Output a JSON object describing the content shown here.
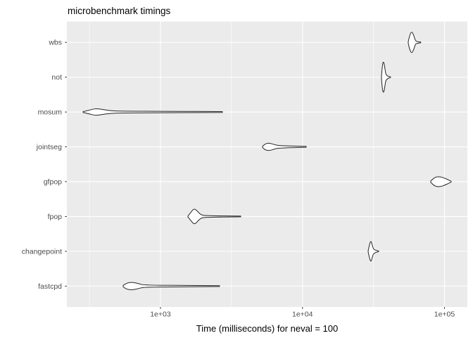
{
  "title": "microbenchmark timings",
  "colors": {
    "panel_bg": "#EBEBEB",
    "grid_major": "#FFFFFF",
    "grid_minor": "#FFFFFF",
    "violin_stroke": "#242424",
    "violin_fill": "#FFFFFF",
    "tick_mark": "#333333",
    "tick_text": "#4D4D4D",
    "title_text": "#000000"
  },
  "chart_data": {
    "type": "violin",
    "orientation": "horizontal",
    "title": "microbenchmark timings",
    "xlabel": "Time (milliseconds) for neval = 100",
    "ylabel": "",
    "x_scale": "log10",
    "xlim_log10": [
      2.341,
      5.161
    ],
    "grid": true,
    "legend": "none",
    "x_ticks": [
      {
        "value": 1000,
        "label": "1e+03"
      },
      {
        "value": 10000,
        "label": "1e+04"
      },
      {
        "value": 100000,
        "label": "1e+05"
      }
    ],
    "x_minor_tick_values": [
      316.2,
      3162.3,
      31622.8
    ],
    "categories_top_to_bottom": [
      "wbs",
      "not",
      "mosum",
      "jointseg",
      "gfpop",
      "fpop",
      "changepoint",
      "fastcpd"
    ],
    "series": [
      {
        "name": "wbs",
        "approx_ms": {
          "min": 55500,
          "peak": 58700,
          "max": 68000
        },
        "profile": [
          [
            4.744,
            0.5
          ],
          [
            4.754,
            10
          ],
          [
            4.769,
            16
          ],
          [
            4.784,
            10
          ],
          [
            4.794,
            3
          ],
          [
            4.804,
            1.2
          ],
          [
            4.833,
            0.5
          ]
        ]
      },
      {
        "name": "not",
        "approx_ms": {
          "min": 36000,
          "peak": 37200,
          "max": 41700
        },
        "profile": [
          [
            4.556,
            0.5
          ],
          [
            4.563,
            18
          ],
          [
            4.571,
            23
          ],
          [
            4.581,
            12
          ],
          [
            4.588,
            2
          ],
          [
            4.62,
            0.5
          ]
        ]
      },
      {
        "name": "mosum",
        "approx_ms": {
          "min": 285,
          "peak": 350,
          "max": 2730
        },
        "profile": [
          [
            2.455,
            0.5
          ],
          [
            2.495,
            2.5
          ],
          [
            2.544,
            5
          ],
          [
            2.594,
            3.5
          ],
          [
            2.643,
            2
          ],
          [
            2.713,
            1.2
          ],
          [
            3.059,
            1.0
          ],
          [
            3.436,
            0.6
          ]
        ]
      },
      {
        "name": "jointseg",
        "approx_ms": {
          "min": 5240,
          "peak": 5860,
          "max": 10600
        },
        "profile": [
          [
            3.719,
            0.8
          ],
          [
            3.738,
            4.5
          ],
          [
            3.768,
            5.5
          ],
          [
            3.803,
            3
          ],
          [
            3.842,
            1.5
          ],
          [
            4.026,
            0.6
          ]
        ]
      },
      {
        "name": "gfpop",
        "approx_ms": {
          "min": 80000,
          "peak": 91600,
          "max": 111000
        },
        "profile": [
          [
            4.903,
            0.8
          ],
          [
            4.928,
            6
          ],
          [
            4.962,
            7.5
          ],
          [
            5.002,
            5
          ],
          [
            5.032,
            2
          ],
          [
            5.047,
            0.6
          ]
        ]
      },
      {
        "name": "fpop",
        "approx_ms": {
          "min": 1560,
          "peak": 1730,
          "max": 3670
        },
        "profile": [
          [
            3.193,
            0.5
          ],
          [
            3.218,
            7
          ],
          [
            3.238,
            11.5
          ],
          [
            3.263,
            7
          ],
          [
            3.282,
            2.5
          ],
          [
            3.317,
            1.0
          ],
          [
            3.565,
            0.5
          ]
        ]
      },
      {
        "name": "changepoint",
        "approx_ms": {
          "min": 29000,
          "peak": 30300,
          "max": 34400
        },
        "profile": [
          [
            4.462,
            0.5
          ],
          [
            4.472,
            10
          ],
          [
            4.482,
            15.5
          ],
          [
            4.492,
            8
          ],
          [
            4.502,
            2
          ],
          [
            4.536,
            0.5
          ]
        ]
      },
      {
        "name": "fastcpd",
        "approx_ms": {
          "min": 546,
          "peak": 634,
          "max": 2610
        },
        "profile": [
          [
            2.737,
            0.8
          ],
          [
            2.762,
            4.5
          ],
          [
            2.802,
            5.5
          ],
          [
            2.846,
            3.5
          ],
          [
            2.881,
            1.5
          ],
          [
            3.109,
            1.0
          ],
          [
            3.416,
            0.6
          ]
        ]
      }
    ]
  }
}
